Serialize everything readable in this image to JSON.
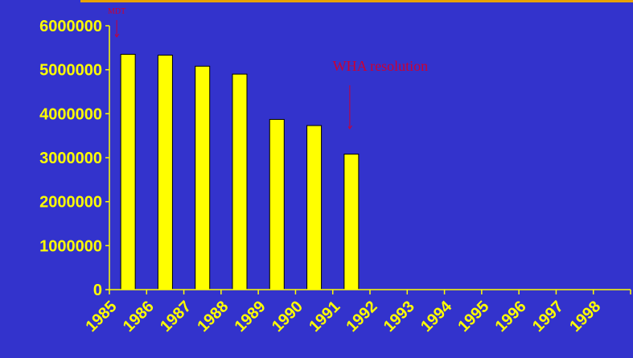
{
  "chart_data": {
    "type": "bar",
    "title": "",
    "xlabel": "",
    "ylabel": "",
    "categories": [
      "1985",
      "1986",
      "1987",
      "1988",
      "1989",
      "1990",
      "1991",
      "1992",
      "1993",
      "1994",
      "1995",
      "1996",
      "1997",
      "1998"
    ],
    "values": [
      5350000,
      5330000,
      5080000,
      4900000,
      3870000,
      3730000,
      3080000,
      null,
      null,
      null,
      null,
      null,
      null,
      null
    ],
    "ylim": [
      0,
      6000000
    ],
    "yticks": [
      "0",
      "1000000",
      "2000000",
      "3000000",
      "4000000",
      "5000000",
      "6000000"
    ],
    "grid": false,
    "legend": "none",
    "colors": {
      "background": "#3333CC",
      "bar": "#FFFF00",
      "bar_edge": "#000000",
      "axis": "#FFFF00",
      "annotation": "#CC0033",
      "top_rule": "#E8A200"
    },
    "annotations": [
      {
        "text": "MDT",
        "category": "1985"
      },
      {
        "text": "WHA resolution",
        "category": "1991"
      }
    ]
  }
}
